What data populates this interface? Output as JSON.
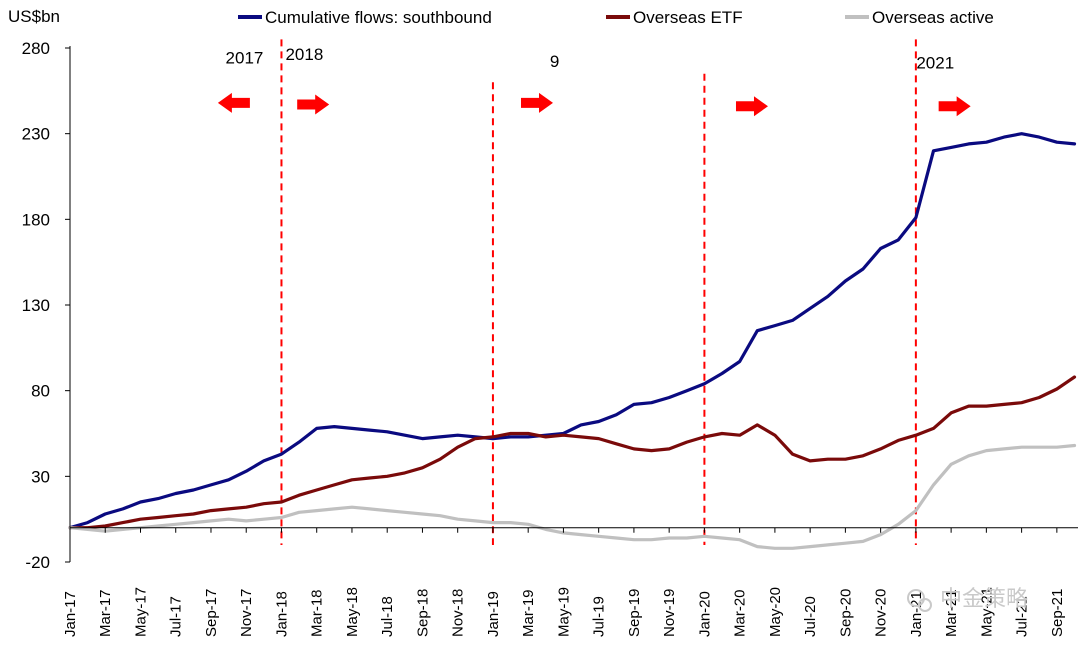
{
  "chart_data": {
    "type": "line",
    "unit_label": "US$bn",
    "ylim": [
      -20,
      280
    ],
    "yticks": [
      -20,
      30,
      80,
      130,
      180,
      230,
      280
    ],
    "xlim": [
      "2017-01",
      "2021-10"
    ],
    "x_tick_labels": [
      "Jan-17",
      "Mar-17",
      "May-17",
      "Jul-17",
      "Sep-17",
      "Nov-17",
      "Jan-18",
      "Mar-18",
      "May-18",
      "Jul-18",
      "Sep-18",
      "Nov-18",
      "Jan-19",
      "Mar-19",
      "May-19",
      "Jul-19",
      "Sep-19",
      "Nov-19",
      "Jan-20",
      "Mar-20",
      "May-20",
      "Jul-20",
      "Sep-20",
      "Nov-20",
      "Jan-21",
      "Mar-21",
      "May-21",
      "Jul-21",
      "Sep-21"
    ],
    "x_months": [
      0,
      2,
      4,
      6,
      8,
      10,
      12,
      14,
      16,
      18,
      20,
      22,
      24,
      26,
      28,
      30,
      32,
      34,
      36,
      38,
      40,
      42,
      44,
      46,
      48,
      50,
      52,
      54,
      56
    ],
    "colors": {
      "southbound": "#0a0a80",
      "etf": "#7a0a0a",
      "active": "#c0c0c0",
      "divider": "#ff0000",
      "arrow": "#ff0000"
    },
    "series": [
      {
        "name": "Cumulative flows: southbound",
        "key": "southbound",
        "x": [
          0,
          1,
          2,
          3,
          4,
          5,
          6,
          7,
          8,
          9,
          10,
          11,
          12,
          13,
          14,
          15,
          16,
          17,
          18,
          19,
          20,
          21,
          22,
          23,
          24,
          25,
          26,
          27,
          28,
          29,
          30,
          31,
          32,
          33,
          34,
          35,
          36,
          37,
          38,
          39,
          40,
          41,
          42,
          43,
          44,
          45,
          46,
          47,
          48,
          49,
          50,
          51,
          52,
          53,
          54,
          55,
          56,
          57
        ],
        "values": [
          0,
          3,
          8,
          11,
          15,
          17,
          20,
          22,
          25,
          28,
          33,
          39,
          43,
          50,
          58,
          59,
          58,
          57,
          56,
          54,
          52,
          53,
          54,
          53,
          52,
          53,
          53,
          54,
          55,
          60,
          62,
          66,
          72,
          73,
          76,
          80,
          84,
          90,
          97,
          115,
          118,
          121,
          128,
          135,
          144,
          151,
          163,
          168,
          181,
          220,
          222,
          224,
          225,
          228,
          230,
          228,
          225,
          224
        ]
      },
      {
        "name": "Overseas ETF",
        "key": "etf",
        "x": [
          0,
          1,
          2,
          3,
          4,
          5,
          6,
          7,
          8,
          9,
          10,
          11,
          12,
          13,
          14,
          15,
          16,
          17,
          18,
          19,
          20,
          21,
          22,
          23,
          24,
          25,
          26,
          27,
          28,
          29,
          30,
          31,
          32,
          33,
          34,
          35,
          36,
          37,
          38,
          39,
          40,
          41,
          42,
          43,
          44,
          45,
          46,
          47,
          48,
          49,
          50,
          51,
          52,
          53,
          54,
          55,
          56,
          57
        ],
        "values": [
          0,
          0,
          1,
          3,
          5,
          6,
          7,
          8,
          10,
          11,
          12,
          14,
          15,
          19,
          22,
          25,
          28,
          29,
          30,
          32,
          35,
          40,
          47,
          52,
          53,
          55,
          55,
          53,
          54,
          53,
          52,
          49,
          46,
          45,
          46,
          50,
          53,
          55,
          54,
          60,
          54,
          43,
          39,
          40,
          40,
          42,
          46,
          51,
          54,
          58,
          67,
          71,
          71,
          72,
          73,
          76,
          81,
          88
        ]
      },
      {
        "name": "Overseas active",
        "key": "active",
        "x": [
          0,
          1,
          2,
          3,
          4,
          5,
          6,
          7,
          8,
          9,
          10,
          11,
          12,
          13,
          14,
          15,
          16,
          17,
          18,
          19,
          20,
          21,
          22,
          23,
          24,
          25,
          26,
          27,
          28,
          29,
          30,
          31,
          32,
          33,
          34,
          35,
          36,
          37,
          38,
          39,
          40,
          41,
          42,
          43,
          44,
          45,
          46,
          47,
          48,
          49,
          50,
          51,
          52,
          53,
          54,
          55,
          56,
          57
        ],
        "values": [
          0,
          -1,
          -2,
          -1,
          0,
          1,
          2,
          3,
          4,
          5,
          4,
          5,
          6,
          9,
          10,
          11,
          12,
          11,
          10,
          9,
          8,
          7,
          5,
          4,
          3,
          3,
          2,
          -1,
          -3,
          -4,
          -5,
          -6,
          -7,
          -7,
          -6,
          -6,
          -5,
          -6,
          -7,
          -11,
          -12,
          -12,
          -11,
          -10,
          -9,
          -8,
          -4,
          2,
          10,
          25,
          37,
          42,
          45,
          46,
          47,
          47,
          47,
          48
        ]
      }
    ],
    "dividers": [
      {
        "x": 12,
        "top": 285
      },
      {
        "x": 24,
        "top": 260
      },
      {
        "x": 36,
        "top": 265
      },
      {
        "x": 48,
        "top": 285
      }
    ],
    "period_labels": [
      {
        "text": "2017",
        "x": 9.9,
        "y": 271
      },
      {
        "text": "2018",
        "x": 13.3,
        "y": 273
      },
      {
        "text": "9",
        "x": 27.5,
        "y": 269
      },
      {
        "text": "2021",
        "x": 49.1,
        "y": 268
      }
    ],
    "arrows": [
      {
        "x": 9.3,
        "y": 248,
        "direction": "left"
      },
      {
        "x": 13.8,
        "y": 247,
        "direction": "right"
      },
      {
        "x": 26.5,
        "y": 248,
        "direction": "right"
      },
      {
        "x": 38.7,
        "y": 246,
        "direction": "right"
      },
      {
        "x": 50.2,
        "y": 246,
        "direction": "right"
      }
    ],
    "watermark": "中金策略"
  }
}
